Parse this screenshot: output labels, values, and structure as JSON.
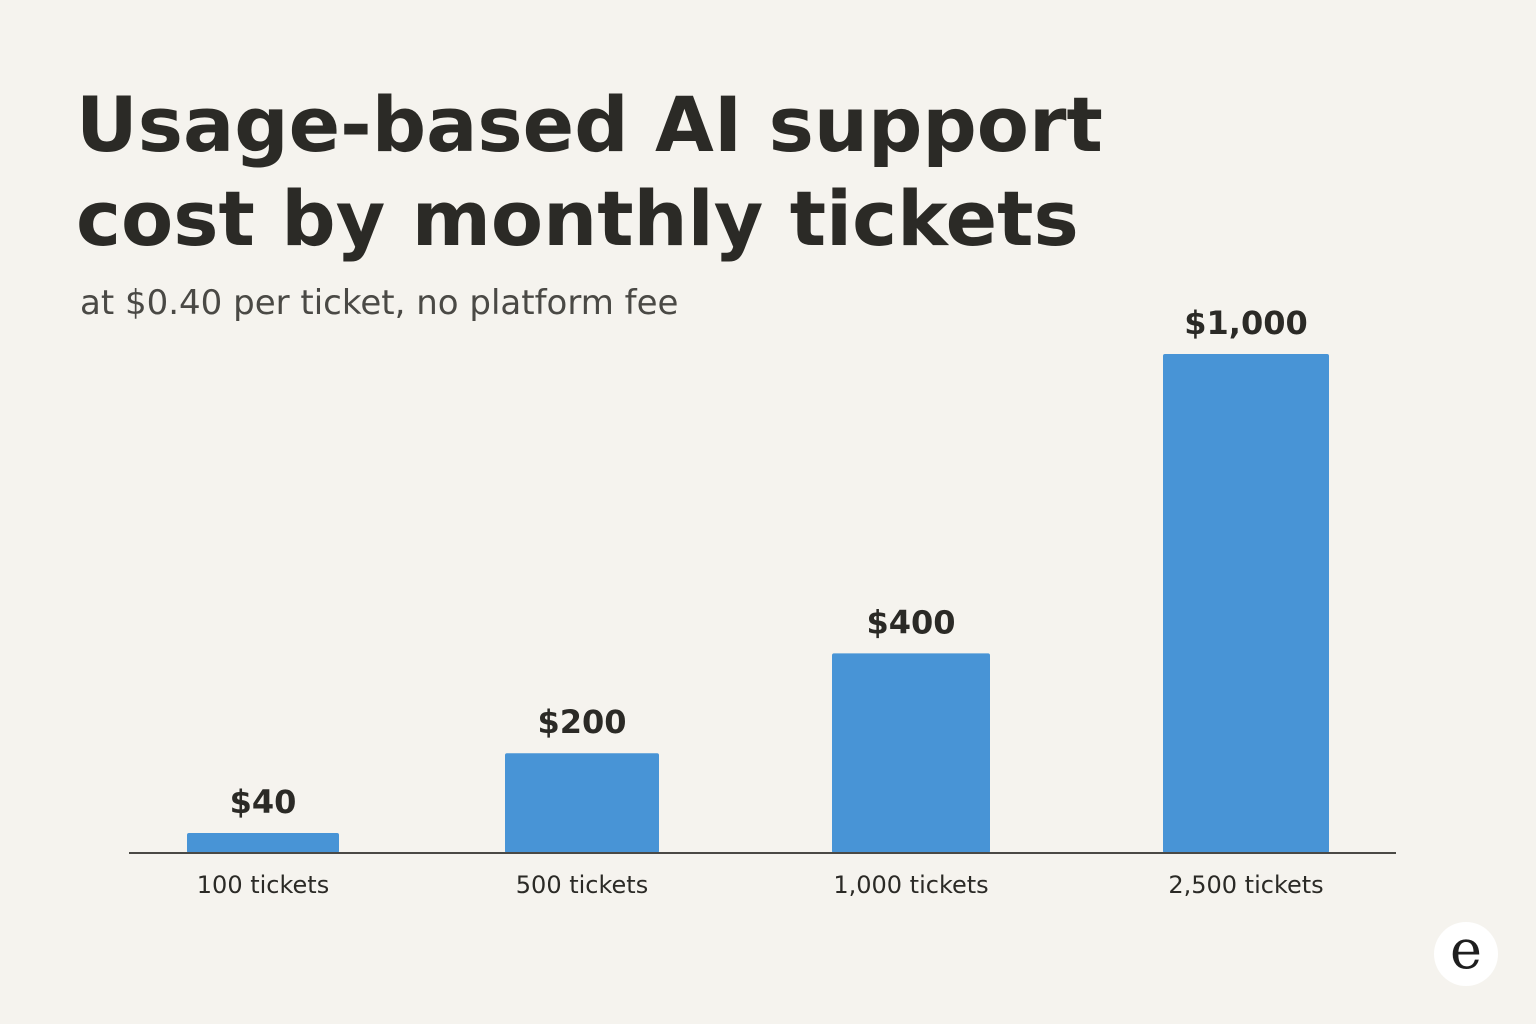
{
  "chart_data": {
    "type": "bar",
    "title": "Usage-based AI support cost by monthly tickets",
    "subtitle": "at $0.40 per ticket, no platform fee",
    "categories": [
      "100 tickets",
      "500 tickets",
      "1,000 tickets",
      "2,500 tickets"
    ],
    "values": [
      40,
      200,
      400,
      1000
    ],
    "data_labels": [
      "$40",
      "$200",
      "$400",
      "$1,000"
    ],
    "xlabel": "",
    "ylabel": "",
    "ylim": [
      0,
      1000
    ],
    "grid": false,
    "bar_color": "#4894d6"
  },
  "logo": {
    "text": "e"
  }
}
